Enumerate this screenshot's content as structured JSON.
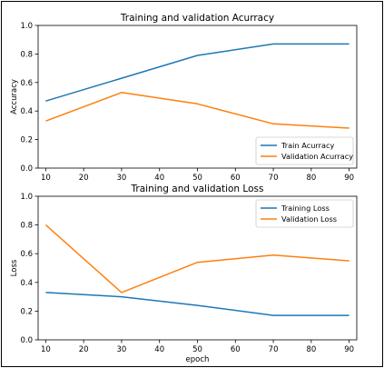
{
  "chart_data": [
    {
      "type": "line",
      "title": "Training and validation Acurracy",
      "xlabel": "",
      "ylabel": "Accuracy",
      "xlim": [
        8,
        92
      ],
      "ylim": [
        0.0,
        1.0
      ],
      "xticks": [
        10,
        20,
        30,
        40,
        50,
        60,
        70,
        80,
        90
      ],
      "yticks": [
        0.0,
        0.2,
        0.4,
        0.6,
        0.8,
        1.0
      ],
      "grid": false,
      "legend_position": "lower-right",
      "x": [
        10,
        30,
        50,
        70,
        90
      ],
      "series": [
        {
          "name": "Train Acurracy",
          "color": "#1f77b4",
          "values": [
            0.47,
            0.63,
            0.79,
            0.87,
            0.87
          ]
        },
        {
          "name": "Validation Acurracy",
          "color": "#ff7f0e",
          "values": [
            0.33,
            0.53,
            0.45,
            0.31,
            0.28
          ]
        }
      ]
    },
    {
      "type": "line",
      "title": "Training and validation Loss",
      "xlabel": "epoch",
      "ylabel": "Loss",
      "xlim": [
        8,
        92
      ],
      "ylim": [
        0.0,
        1.0
      ],
      "xticks": [
        10,
        20,
        30,
        40,
        50,
        60,
        70,
        80,
        90
      ],
      "yticks": [
        0.0,
        0.2,
        0.4,
        0.6,
        0.8,
        1.0
      ],
      "grid": false,
      "legend_position": "top-right",
      "x": [
        10,
        30,
        50,
        70,
        90
      ],
      "series": [
        {
          "name": "Training Loss",
          "color": "#1f77b4",
          "values": [
            0.33,
            0.3,
            0.24,
            0.17,
            0.17
          ]
        },
        {
          "name": "Validation Loss",
          "color": "#ff7f0e",
          "values": [
            0.8,
            0.33,
            0.54,
            0.59,
            0.55
          ]
        }
      ]
    }
  ]
}
